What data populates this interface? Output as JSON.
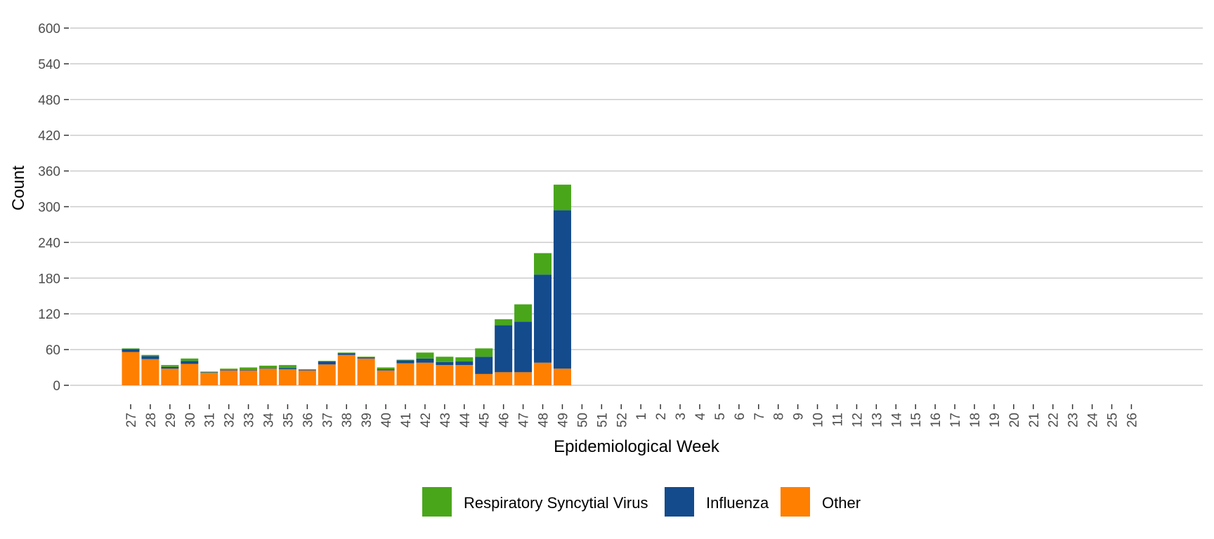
{
  "chart_data": {
    "type": "bar",
    "stacked": true,
    "title": "",
    "xlabel": "Epidemiological Week",
    "ylabel": "Count",
    "ylim": [
      0,
      600
    ],
    "yticks": [
      0,
      60,
      120,
      180,
      240,
      300,
      360,
      420,
      480,
      540,
      600
    ],
    "grid": "horizontal",
    "legend_position": "bottom",
    "categories": [
      "27",
      "28",
      "29",
      "30",
      "31",
      "32",
      "33",
      "34",
      "35",
      "36",
      "37",
      "38",
      "39",
      "40",
      "41",
      "42",
      "43",
      "44",
      "45",
      "46",
      "47",
      "48",
      "49",
      "50",
      "51",
      "52",
      "1",
      "2",
      "3",
      "4",
      "5",
      "6",
      "7",
      "8",
      "9",
      "10",
      "11",
      "12",
      "13",
      "14",
      "15",
      "16",
      "17",
      "18",
      "19",
      "20",
      "21",
      "22",
      "23",
      "24",
      "25",
      "26"
    ],
    "series": [
      {
        "name": "Other",
        "color": "#ff7f00",
        "values": [
          56,
          44,
          28,
          36,
          21,
          25,
          25,
          28,
          27,
          25,
          35,
          51,
          45,
          25,
          37,
          38,
          34,
          34,
          19,
          22,
          22,
          38,
          28,
          0,
          0,
          0,
          0,
          0,
          0,
          0,
          0,
          0,
          0,
          0,
          0,
          0,
          0,
          0,
          0,
          0,
          0,
          0,
          0,
          0,
          0,
          0,
          0,
          0,
          0,
          0,
          0,
          0
        ]
      },
      {
        "name": "Influenza",
        "color": "#134b8d",
        "values": [
          5,
          5,
          3,
          5,
          1,
          1,
          1,
          1,
          2,
          1,
          5,
          3,
          2,
          2,
          5,
          7,
          5,
          6,
          29,
          79,
          85,
          148,
          266,
          0,
          0,
          0,
          0,
          0,
          0,
          0,
          0,
          0,
          0,
          0,
          0,
          0,
          0,
          0,
          0,
          0,
          0,
          0,
          0,
          0,
          0,
          0,
          0,
          0,
          0,
          0,
          0,
          0
        ]
      },
      {
        "name": "Respiratory Syncytial Virus",
        "color": "#49a61b",
        "values": [
          1,
          2,
          3,
          4,
          1,
          2,
          4,
          4,
          5,
          1,
          1,
          1,
          1,
          3,
          1,
          10,
          9,
          7,
          14,
          10,
          29,
          36,
          43,
          0,
          0,
          0,
          0,
          0,
          0,
          0,
          0,
          0,
          0,
          0,
          0,
          0,
          0,
          0,
          0,
          0,
          0,
          0,
          0,
          0,
          0,
          0,
          0,
          0,
          0,
          0,
          0,
          0
        ]
      }
    ],
    "legend": [
      {
        "label": "Respiratory Syncytial Virus",
        "color": "#49a61b"
      },
      {
        "label": "Influenza",
        "color": "#134b8d"
      },
      {
        "label": "Other",
        "color": "#ff7f00"
      }
    ]
  }
}
